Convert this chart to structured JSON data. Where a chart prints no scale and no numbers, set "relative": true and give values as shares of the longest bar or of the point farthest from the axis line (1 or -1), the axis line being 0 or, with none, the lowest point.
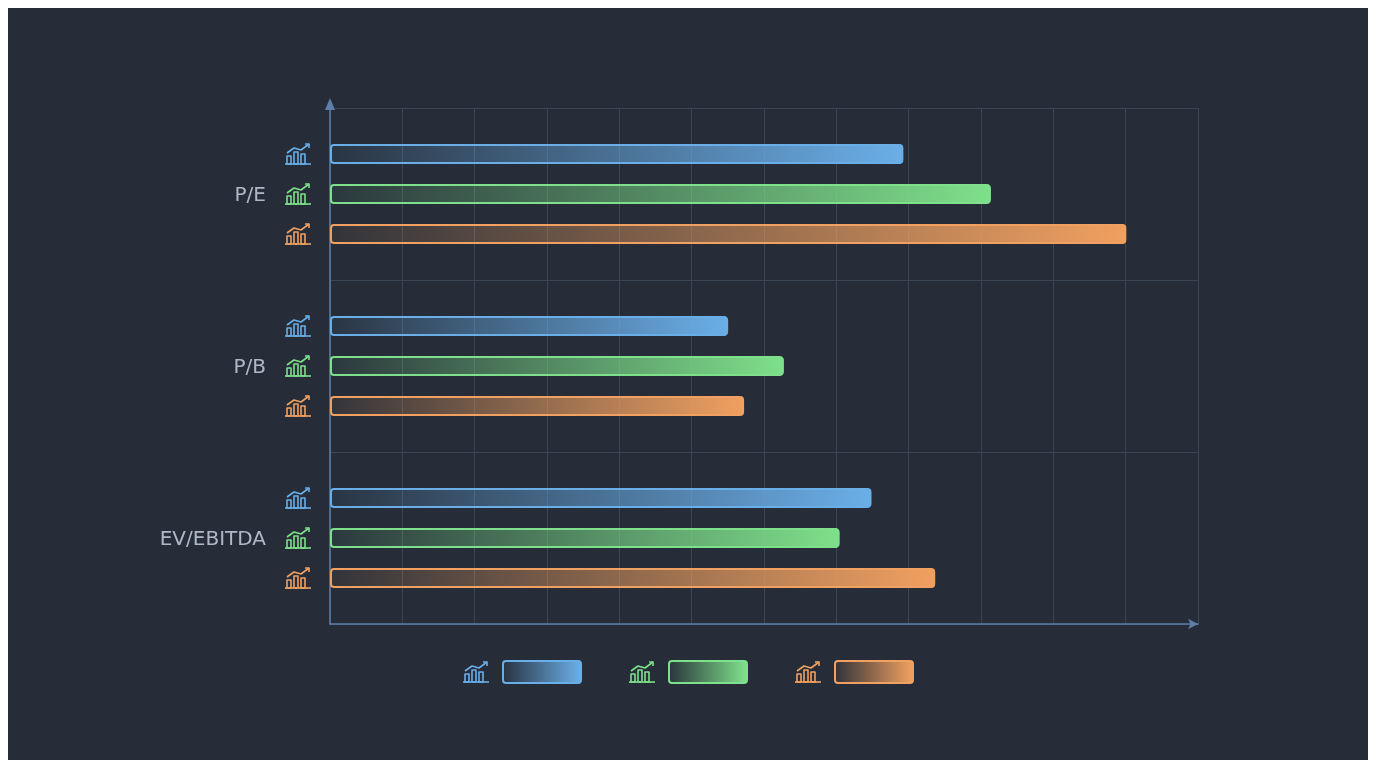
{
  "chart_data": {
    "type": "bar",
    "orientation": "horizontal",
    "relative": true,
    "categories": [
      "P/E",
      "P/B",
      "EV/EBITDA"
    ],
    "series": [
      {
        "color": "#6aaee8",
        "values": [
          0.72,
          0.5,
          0.68
        ]
      },
      {
        "color": "#7ee08a",
        "values": [
          0.83,
          0.57,
          0.64
        ]
      },
      {
        "color": "#f0a060",
        "values": [
          1,
          0.52,
          0.76
        ]
      }
    ],
    "grid": true
  }
}
